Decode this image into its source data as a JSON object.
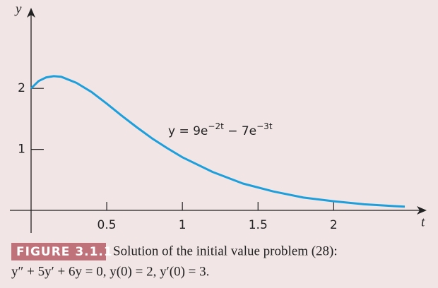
{
  "chart_data": {
    "type": "line",
    "x_label": "t",
    "y_label": "y",
    "annotation": [
      "y = 9e",
      "−2t",
      " − 7e",
      "−3t"
    ],
    "x": [
      0,
      0.05,
      0.1,
      0.15,
      0.2,
      0.3,
      0.4,
      0.5,
      0.6,
      0.7,
      0.8,
      0.9,
      1.0,
      1.2,
      1.4,
      1.6,
      1.8,
      2.0,
      2.2,
      2.4,
      2.47
    ],
    "series": [
      {
        "color": "#1d9fdb",
        "values": [
          2,
          2.12,
          2.18,
          2.2,
          2.19,
          2.09,
          1.94,
          1.75,
          1.55,
          1.36,
          1.18,
          1.02,
          0.87,
          0.63,
          0.44,
          0.31,
          0.21,
          0.15,
          0.1,
          0.07,
          0.06
        ]
      }
    ],
    "xlim": [
      -0.14,
      2.61
    ],
    "ylim": [
      -0.37,
      3.31
    ],
    "xticks": [
      0.5,
      1,
      1.5,
      2
    ],
    "yticks": [
      1,
      2
    ],
    "caption": {
      "label": "FIGURE 3.1.1",
      "line1": "Solution of the initial value problem (28):",
      "line2": "y″ + 5y′ + 6y = 0,  y(0) = 2,  y′(0) = 3."
    }
  }
}
